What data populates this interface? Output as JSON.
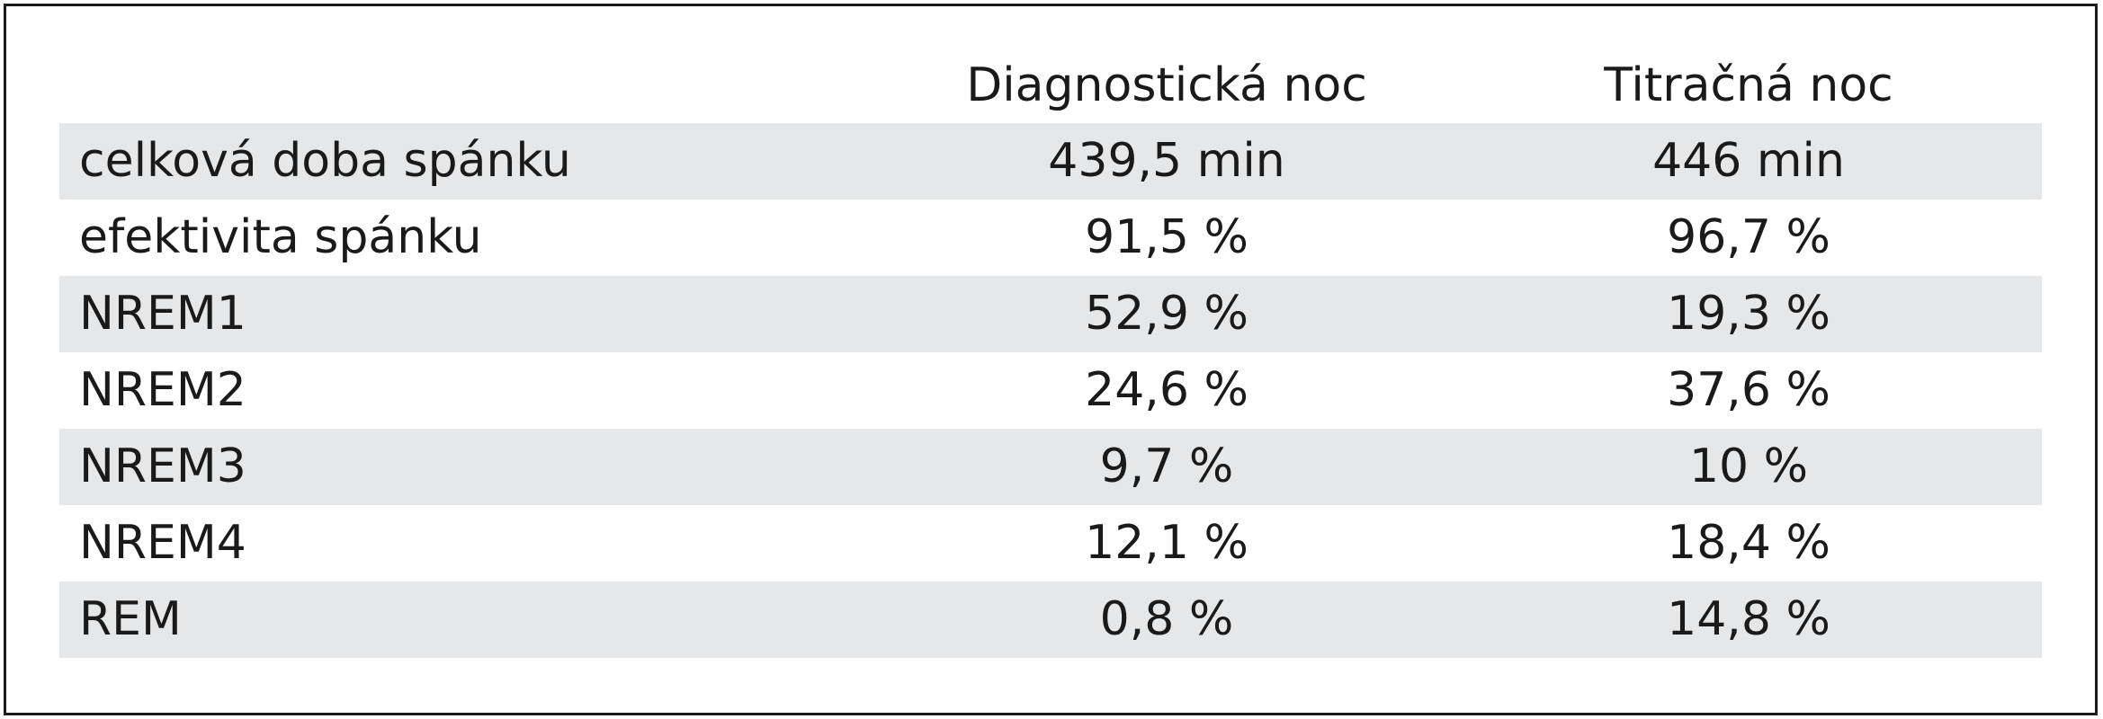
{
  "table": {
    "header": [
      "Diagnostická noc",
      "Titračná noc"
    ],
    "rows": [
      [
        "celková doba spánku",
        "439,5 min",
        "446 min"
      ],
      [
        "efektivita spánku",
        "91,5 %",
        "96,7 %"
      ],
      [
        "NREM1",
        "52,9 %",
        "19,3 %"
      ],
      [
        "NREM2",
        "24,6 %",
        "37,6 %"
      ],
      [
        "NREM3",
        "9,7 %",
        "10 %"
      ],
      [
        "NREM4",
        "12,1 %",
        "18,4 %"
      ],
      [
        "REM",
        "0,8 %",
        "14,8 %"
      ]
    ]
  }
}
